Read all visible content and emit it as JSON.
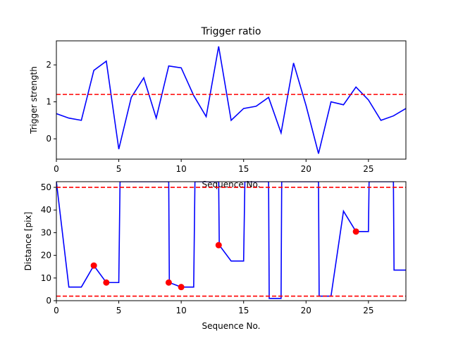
{
  "chart_data": [
    {
      "type": "line",
      "title": "Trigger ratio",
      "xlabel": "Sequence No.",
      "ylabel": "Trigger strength",
      "xlim": [
        0,
        28
      ],
      "ylim": [
        -0.55,
        2.65
      ],
      "xticks": [
        0,
        5,
        10,
        15,
        20,
        25
      ],
      "yticks": [
        0,
        1,
        2
      ],
      "grid": false,
      "series": [
        {
          "color": "#0000ff",
          "x": [
            0,
            1,
            2,
            3,
            4,
            5,
            6,
            7,
            8,
            9,
            10,
            11,
            12,
            13,
            14,
            15,
            16,
            17,
            18,
            19,
            20,
            21,
            22,
            23,
            24,
            25,
            26,
            27,
            28
          ],
          "values": [
            0.68,
            0.56,
            0.5,
            1.85,
            2.1,
            -0.28,
            1.12,
            1.65,
            0.56,
            1.97,
            1.92,
            1.17,
            0.6,
            2.5,
            0.5,
            0.82,
            0.88,
            1.12,
            0.16,
            2.05,
            0.9,
            -0.4,
            1.0,
            0.92,
            1.4,
            1.05,
            0.5,
            0.62,
            0.82
          ]
        }
      ],
      "hlines": [
        {
          "y": 1.2,
          "color": "#ff0000",
          "style": "dashed"
        }
      ]
    },
    {
      "type": "line",
      "title": "",
      "xlabel": "Sequence No.",
      "ylabel": "Distance [pix]",
      "xlim": [
        0,
        28
      ],
      "ylim": [
        0,
        52.5
      ],
      "xticks": [
        0,
        5,
        10,
        15,
        20,
        25
      ],
      "yticks": [
        0,
        10,
        20,
        30,
        40,
        50
      ],
      "grid": false,
      "series": [
        {
          "color": "#0000ff",
          "x": [
            0,
            1,
            2,
            3,
            4,
            5,
            5.1,
            9,
            9.05,
            10,
            11,
            11.1,
            13,
            13.05,
            14,
            15,
            15.1,
            17,
            17.05,
            18,
            18.05,
            21,
            21.05,
            22,
            23,
            24,
            25,
            25.05,
            27,
            27.05,
            28
          ],
          "values": [
            52.5,
            6,
            6,
            15.5,
            8,
            8,
            52.5,
            52.5,
            8,
            6,
            6,
            52.5,
            52.5,
            24.5,
            17.5,
            17.5,
            52.5,
            52.5,
            1,
            1,
            52.5,
            52.5,
            2,
            2,
            39.5,
            30.5,
            30.5,
            52.5,
            52.5,
            13.5,
            13.5
          ]
        },
        {
          "color": "#ff0000",
          "marker": "circle",
          "x": [
            3,
            4,
            9,
            10,
            13,
            24
          ],
          "values": [
            15.5,
            8,
            8,
            6,
            24.5,
            30.5
          ]
        }
      ],
      "hlines": [
        {
          "y": 50,
          "color": "#ff0000",
          "style": "dashed"
        },
        {
          "y": 2,
          "color": "#ff0000",
          "style": "dashed"
        }
      ]
    }
  ]
}
